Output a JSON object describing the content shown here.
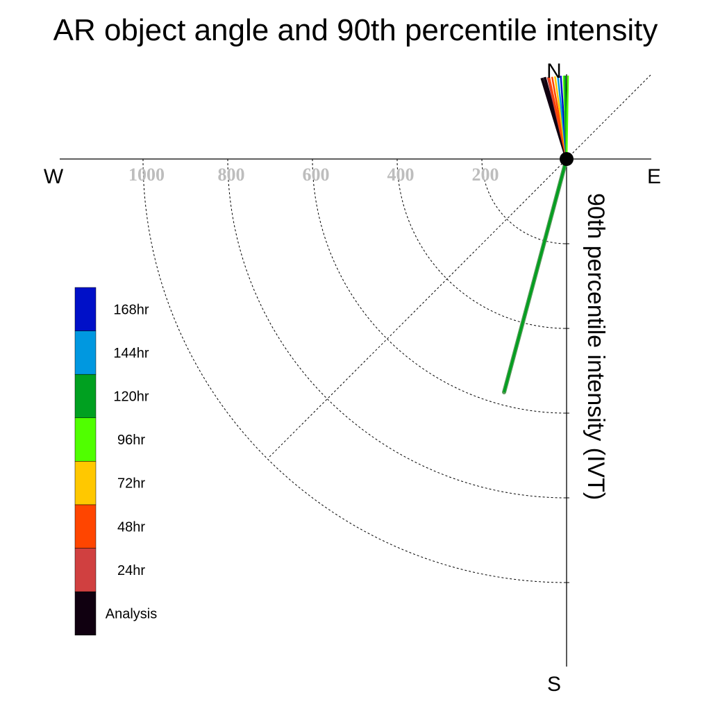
{
  "chart_data": {
    "type": "polar-vector",
    "title": "AR object angle and 90th percentile intensity",
    "ylabel": "90th percentile intensity (IVT)",
    "compass": {
      "north": "N",
      "south": "S",
      "east": "E",
      "west": "W"
    },
    "radial_range": [
      0,
      1200
    ],
    "radial_ticks": [
      200,
      400,
      600,
      800,
      1000
    ],
    "radial_tick_labels": [
      "200",
      "400",
      "600",
      "800",
      "1000"
    ],
    "grid": true,
    "legend_placement": "left",
    "legend": [
      {
        "label": "168hr",
        "color": "#0010c8"
      },
      {
        "label": "144hr",
        "color": "#0098e0"
      },
      {
        "label": "120hr",
        "color": "#00a020"
      },
      {
        "label": "96hr",
        "color": "#50ff00"
      },
      {
        "label": "72hr",
        "color": "#ffc800"
      },
      {
        "label": "48hr",
        "color": "#ff4500"
      },
      {
        "label": "24hr",
        "color": "#d04040"
      },
      {
        "label": "Analysis",
        "color": "#100010"
      }
    ],
    "vectors": [
      {
        "series": "Analysis",
        "color": "#100010",
        "angle_deg": 343,
        "intensity": 200
      },
      {
        "series": "Analysis",
        "color": "#100010",
        "angle_deg": 345,
        "intensity": 200
      },
      {
        "series": "24hr",
        "color": "#d04040",
        "angle_deg": 347,
        "intensity": 198
      },
      {
        "series": "48hr",
        "color": "#ff4500",
        "angle_deg": 348,
        "intensity": 198
      },
      {
        "series": "48hr",
        "color": "#ff4500",
        "angle_deg": 350,
        "intensity": 197
      },
      {
        "series": "72hr",
        "color": "#ffc800",
        "angle_deg": 352,
        "intensity": 197
      },
      {
        "series": "144hr",
        "color": "#0098e0",
        "angle_deg": 354,
        "intensity": 197
      },
      {
        "series": "168hr",
        "color": "#0010c8",
        "angle_deg": 356,
        "intensity": 197
      },
      {
        "series": "96hr",
        "color": "#50ff00",
        "angle_deg": 358,
        "intensity": 197
      },
      {
        "series": "120hr",
        "color": "#00a020",
        "angle_deg": 359,
        "intensity": 197
      },
      {
        "series": "96hr",
        "color": "#50ff00",
        "angle_deg": 1,
        "intensity": 197
      },
      {
        "series": "120hr",
        "color": "#00a020",
        "angle_deg": 195,
        "intensity": 570
      }
    ]
  }
}
